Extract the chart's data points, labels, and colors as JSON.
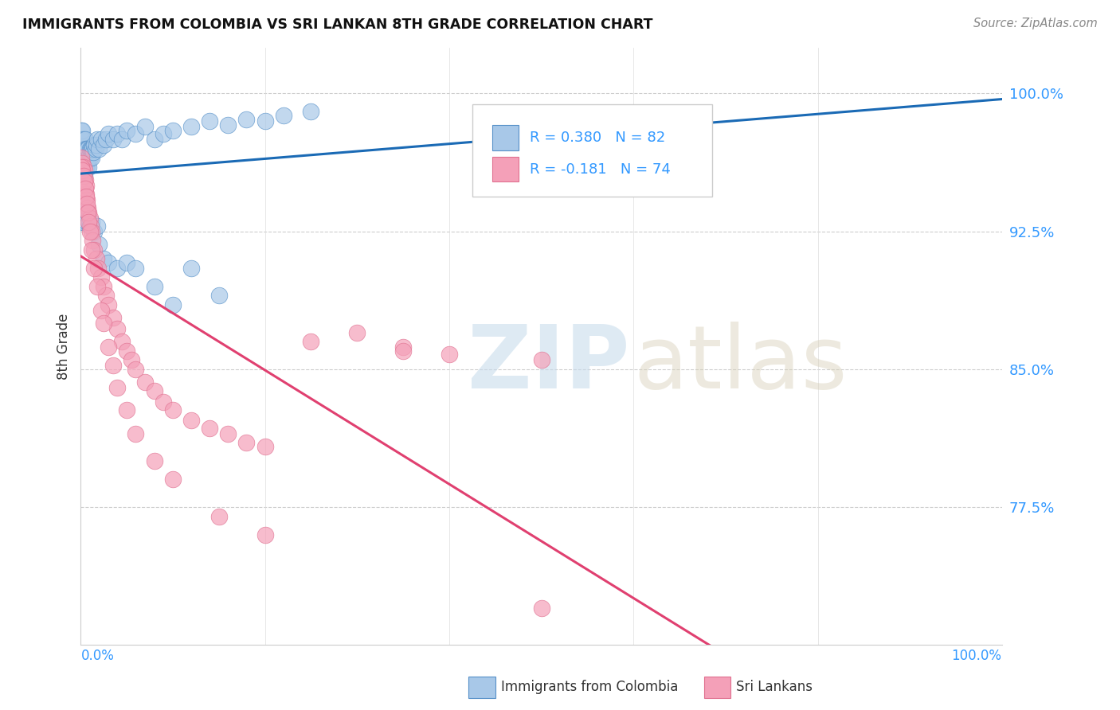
{
  "title": "IMMIGRANTS FROM COLOMBIA VS SRI LANKAN 8TH GRADE CORRELATION CHART",
  "source": "Source: ZipAtlas.com",
  "ylabel": "8th Grade",
  "yticks": [
    0.775,
    0.85,
    0.925,
    1.0
  ],
  "ytick_labels": [
    "77.5%",
    "85.0%",
    "92.5%",
    "100.0%"
  ],
  "blue_color": "#a8c8e8",
  "pink_color": "#f4a0b8",
  "blue_edge": "#5590c8",
  "pink_edge": "#e07090",
  "blue_line_color": "#1a6ab5",
  "pink_line_color": "#e04070",
  "legend_text_color": "#3399ff",
  "right_tick_color": "#3399ff",
  "grid_color": "#cccccc",
  "colombia_x": [
    0.001,
    0.001,
    0.001,
    0.002,
    0.002,
    0.002,
    0.002,
    0.003,
    0.003,
    0.003,
    0.003,
    0.004,
    0.004,
    0.004,
    0.004,
    0.005,
    0.005,
    0.005,
    0.006,
    0.006,
    0.006,
    0.007,
    0.007,
    0.007,
    0.008,
    0.008,
    0.009,
    0.009,
    0.01,
    0.01,
    0.011,
    0.012,
    0.012,
    0.013,
    0.014,
    0.015,
    0.016,
    0.017,
    0.018,
    0.02,
    0.022,
    0.025,
    0.028,
    0.03,
    0.035,
    0.04,
    0.045,
    0.05,
    0.06,
    0.07,
    0.08,
    0.09,
    0.1,
    0.12,
    0.14,
    0.16,
    0.18,
    0.2,
    0.22,
    0.25,
    0.001,
    0.002,
    0.003,
    0.004,
    0.005,
    0.006,
    0.007,
    0.008,
    0.01,
    0.012,
    0.015,
    0.018,
    0.02,
    0.025,
    0.03,
    0.04,
    0.05,
    0.06,
    0.08,
    0.1,
    0.12,
    0.15
  ],
  "colombia_y": [
    0.97,
    0.975,
    0.98,
    0.965,
    0.97,
    0.975,
    0.98,
    0.96,
    0.965,
    0.97,
    0.975,
    0.955,
    0.96,
    0.965,
    0.97,
    0.965,
    0.97,
    0.975,
    0.96,
    0.965,
    0.97,
    0.96,
    0.965,
    0.97,
    0.965,
    0.97,
    0.96,
    0.965,
    0.965,
    0.97,
    0.97,
    0.965,
    0.97,
    0.97,
    0.968,
    0.972,
    0.97,
    0.972,
    0.975,
    0.97,
    0.975,
    0.972,
    0.975,
    0.978,
    0.975,
    0.978,
    0.975,
    0.98,
    0.978,
    0.982,
    0.975,
    0.978,
    0.98,
    0.982,
    0.985,
    0.983,
    0.986,
    0.985,
    0.988,
    0.99,
    0.93,
    0.935,
    0.93,
    0.935,
    0.94,
    0.935,
    0.93,
    0.935,
    0.928,
    0.93,
    0.925,
    0.928,
    0.918,
    0.91,
    0.908,
    0.905,
    0.908,
    0.905,
    0.895,
    0.885,
    0.905,
    0.89
  ],
  "srilanka_x": [
    0.001,
    0.001,
    0.002,
    0.002,
    0.003,
    0.003,
    0.004,
    0.004,
    0.005,
    0.005,
    0.006,
    0.006,
    0.007,
    0.008,
    0.009,
    0.01,
    0.011,
    0.012,
    0.013,
    0.015,
    0.017,
    0.019,
    0.022,
    0.025,
    0.028,
    0.03,
    0.035,
    0.04,
    0.045,
    0.05,
    0.055,
    0.06,
    0.07,
    0.08,
    0.09,
    0.1,
    0.12,
    0.14,
    0.16,
    0.18,
    0.2,
    0.25,
    0.3,
    0.35,
    0.4,
    0.5,
    0.001,
    0.002,
    0.003,
    0.004,
    0.005,
    0.006,
    0.007,
    0.008,
    0.009,
    0.01,
    0.012,
    0.015,
    0.018,
    0.022,
    0.025,
    0.03,
    0.035,
    0.04,
    0.05,
    0.06,
    0.08,
    0.1,
    0.15,
    0.2,
    0.35,
    0.5
  ],
  "srilanka_y": [
    0.965,
    0.96,
    0.962,
    0.958,
    0.955,
    0.96,
    0.952,
    0.958,
    0.948,
    0.953,
    0.945,
    0.95,
    0.942,
    0.938,
    0.935,
    0.932,
    0.928,
    0.925,
    0.92,
    0.915,
    0.91,
    0.905,
    0.9,
    0.895,
    0.89,
    0.885,
    0.878,
    0.872,
    0.865,
    0.86,
    0.855,
    0.85,
    0.843,
    0.838,
    0.832,
    0.828,
    0.822,
    0.818,
    0.815,
    0.81,
    0.808,
    0.865,
    0.87,
    0.862,
    0.858,
    0.855,
    0.96,
    0.958,
    0.955,
    0.952,
    0.948,
    0.944,
    0.94,
    0.935,
    0.93,
    0.925,
    0.915,
    0.905,
    0.895,
    0.882,
    0.875,
    0.862,
    0.852,
    0.84,
    0.828,
    0.815,
    0.8,
    0.79,
    0.77,
    0.76,
    0.86,
    0.72
  ]
}
